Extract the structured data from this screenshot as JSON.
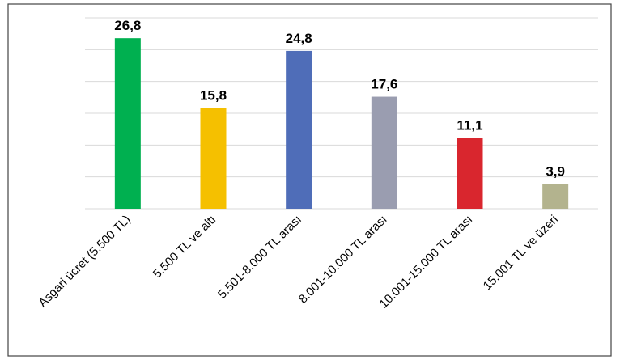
{
  "chart_data": {
    "type": "bar",
    "categories": [
      "Asgari ücret (5.500 TL)",
      "5.500 TL ve altı",
      "5.501-8.000 TL arası",
      "8.001-10.000 TL arası",
      "10.001-15.000 TL arası",
      "15.001 TL ve üzeri"
    ],
    "values": [
      26.8,
      15.8,
      24.8,
      17.6,
      11.1,
      3.9
    ],
    "value_labels": [
      "26,8",
      "15,8",
      "24,8",
      "17,6",
      "11,1",
      "3,9"
    ],
    "colors": [
      "#00b050",
      "#f5c000",
      "#4f6db8",
      "#9a9db0",
      "#d9262e",
      "#b3b38e"
    ],
    "ylim": [
      0,
      30
    ],
    "yticks": [
      0,
      5,
      10,
      15,
      20,
      25,
      30
    ],
    "grid": true
  }
}
